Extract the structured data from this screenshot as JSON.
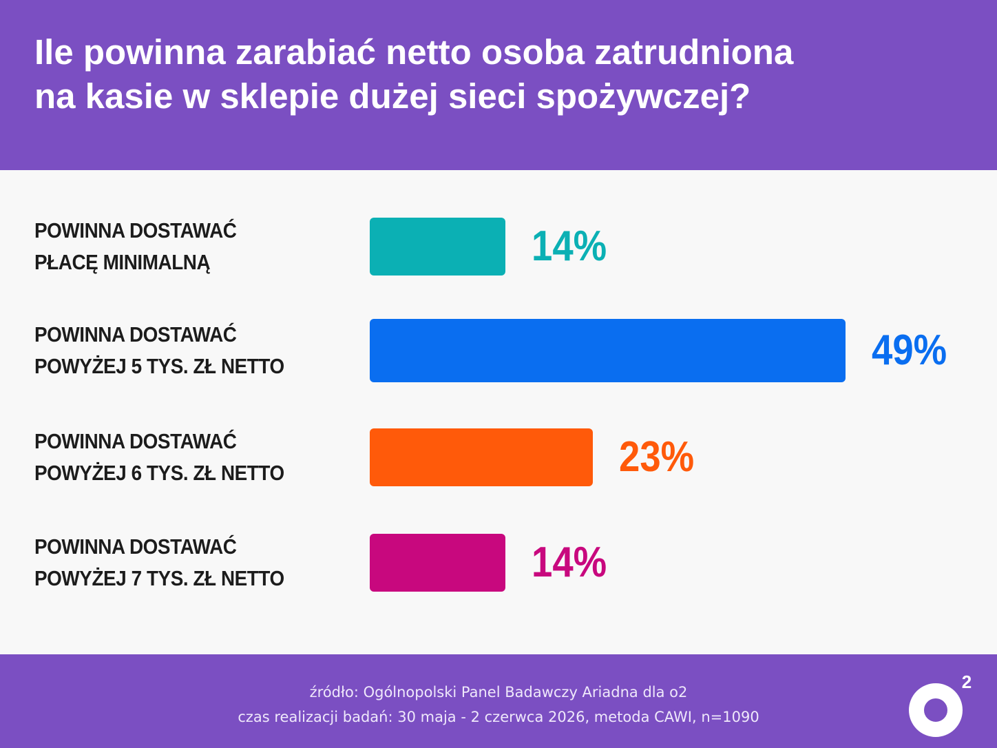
{
  "header": {
    "title_line1": "Ile powinna zarabiać netto osoba zatrudniona",
    "title_line2": "na kasie w sklepie dużej sieci spożywczej?"
  },
  "chart_data": {
    "type": "bar",
    "orientation": "horizontal",
    "categories": [
      [
        "POWINNA DOSTAWAĆ",
        "PŁACĘ MINIMALNĄ"
      ],
      [
        "POWINNA DOSTAWAĆ",
        "POWYŻEJ 5 TYS. ZŁ NETTO"
      ],
      [
        "POWINNA DOSTAWAĆ",
        "POWYŻEJ 6 TYS. ZŁ NETTO"
      ],
      [
        "POWINNA DOSTAWAĆ",
        "POWYŻEJ 7 TYS. ZŁ NETTO"
      ]
    ],
    "values": [
      14,
      49,
      23,
      14
    ],
    "value_labels": [
      "14%",
      "49%",
      "23%",
      "14%"
    ],
    "colors": [
      "#0bb0b4",
      "#0a6ef0",
      "#ff5a0a",
      "#c8087e"
    ],
    "unit": "%",
    "grid": false,
    "legend": "none"
  },
  "footer": {
    "source_line1": "źródło: Ogólnopolski Panel Badawczy Ariadna dla o2",
    "source_line2": "czas realizacji badań: 30 maja - 2 czerwca 2026, metoda CAWI, n=1090",
    "logo_text": "o",
    "logo_superscript": "2"
  }
}
